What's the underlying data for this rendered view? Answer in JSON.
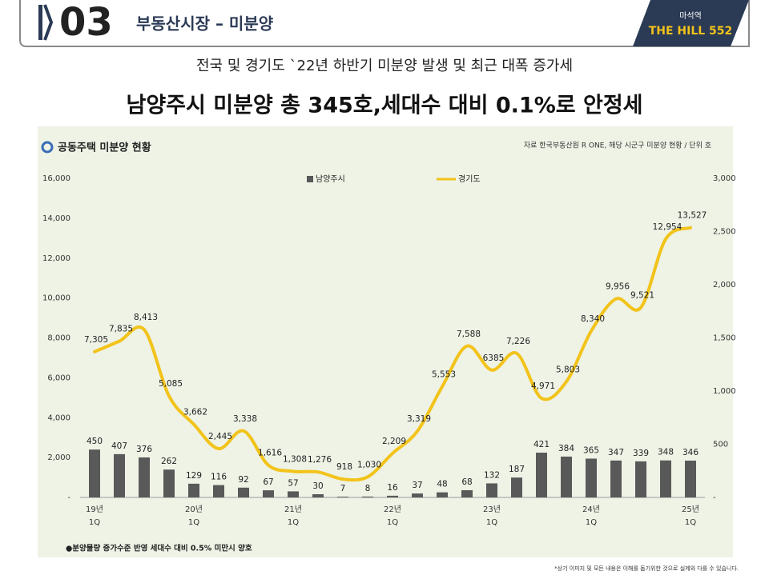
{
  "header": {
    "number": "03",
    "title": "부동산시장 – 미분양",
    "badge_top": "마석역",
    "badge_main": "THE HILL 552"
  },
  "subtitle": "전국 및 경기도 `22년 하반기 미분양 발생 및 최근 대폭 증가세",
  "headline": "남양주시 미분양 총 345호,세대수 대비 0.1%로 안정세",
  "panel": {
    "title": "공동주택 미분양 현황",
    "source": "자료  한국부동산원 R ONE, 해당 시군구 미분양 현황 / 단위 호",
    "footnote": "●분양물량 증가수준 반영 세대수 대비 0.5% 미만시 양호"
  },
  "disclaimer": "*상기 이미지 및 모든 내용은 이해를 돕기위한 것으로 실제와 다를 수 있습니다.",
  "chart_data": {
    "type": "bar",
    "categories": [
      "19년 1Q",
      null,
      null,
      null,
      "20년 1Q",
      null,
      null,
      null,
      "21년 1Q",
      null,
      null,
      null,
      "22년 1Q",
      null,
      null,
      null,
      "23년 1Q",
      null,
      null,
      null,
      "24년 1Q",
      null,
      null,
      null,
      "25년 1Q"
    ],
    "series": [
      {
        "name": "남양주시",
        "type": "bar",
        "axis": "y2",
        "color": "#595959",
        "values": [
          450,
          407,
          376,
          262,
          129,
          116,
          92,
          67,
          57,
          30,
          7,
          8,
          16,
          37,
          48,
          68,
          132,
          187,
          421,
          384,
          365,
          347,
          339,
          348,
          346
        ]
      },
      {
        "name": "경기도",
        "type": "line",
        "color": "#f2c31a",
        "values": [
          7305,
          7835,
          8413,
          5085,
          3662,
          2445,
          3338,
          1616,
          1308,
          1276,
          918,
          1030,
          2209,
          3319,
          5553,
          7588,
          6385,
          7226,
          4971,
          5803,
          8340,
          9956,
          9521,
          12954,
          13527
        ],
        "value_labels": [
          "7,305",
          "7,835",
          "8,413",
          "5,085",
          "3,662",
          "2,445",
          "3,338",
          "1,616",
          "1,308",
          "1,276",
          "918",
          "1,030",
          "2,209",
          "3,319",
          "5,553",
          "7,588",
          "6385",
          "7,226",
          "4,971",
          "5,803",
          "8,340",
          "9,956",
          "9,521",
          "12,954",
          "13,527"
        ]
      }
    ],
    "ylim": [
      0,
      16000
    ],
    "yticks": [
      {
        "value": 0,
        "label": "-"
      },
      {
        "value": 2000,
        "label": "2,000"
      },
      {
        "value": 4000,
        "label": "4,000"
      },
      {
        "value": 6000,
        "label": "6,000"
      },
      {
        "value": 8000,
        "label": "8,000"
      },
      {
        "value": 10000,
        "label": "10,000"
      },
      {
        "value": 12000,
        "label": "12,000"
      },
      {
        "value": 14000,
        "label": "14,000"
      },
      {
        "value": 16000,
        "label": "16,000"
      }
    ],
    "y2lim": [
      0,
      3000
    ],
    "y2ticks": [
      {
        "value": 0,
        "label": "-"
      },
      500,
      {
        "value": 1000,
        "label": "1,000"
      },
      {
        "value": 1500,
        "label": "1,500"
      },
      {
        "value": 2000,
        "label": "2,000"
      },
      {
        "value": 2500,
        "label": "2,500"
      },
      {
        "value": 3000,
        "label": "3,000"
      }
    ]
  }
}
